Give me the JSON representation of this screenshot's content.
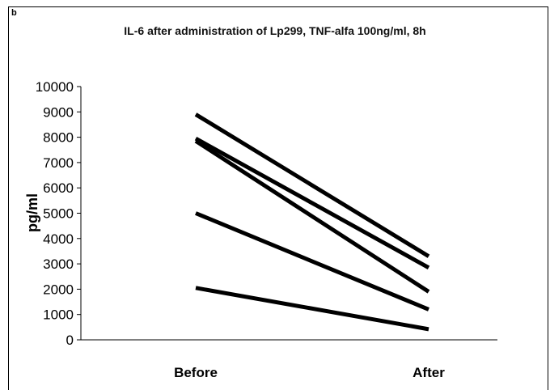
{
  "panel_label": "b",
  "chart_data": {
    "type": "line",
    "title": "IL-6 after administration of Lp299, TNF-alfa 100ng/ml, 8h",
    "ylabel": "pg/ml",
    "xlabel": "",
    "categories": [
      "Before",
      "After"
    ],
    "ylim": [
      0,
      10000
    ],
    "yticks": [
      0,
      1000,
      2000,
      3000,
      4000,
      5000,
      6000,
      7000,
      8000,
      9000,
      10000
    ],
    "grid": false,
    "legend": "none",
    "line_color": "#000000",
    "series": [
      {
        "values": [
          8900,
          3300
        ]
      },
      {
        "values": [
          7950,
          2850
        ]
      },
      {
        "values": [
          7850,
          1900
        ]
      },
      {
        "values": [
          5000,
          1200
        ]
      },
      {
        "values": [
          2050,
          420
        ]
      }
    ]
  }
}
